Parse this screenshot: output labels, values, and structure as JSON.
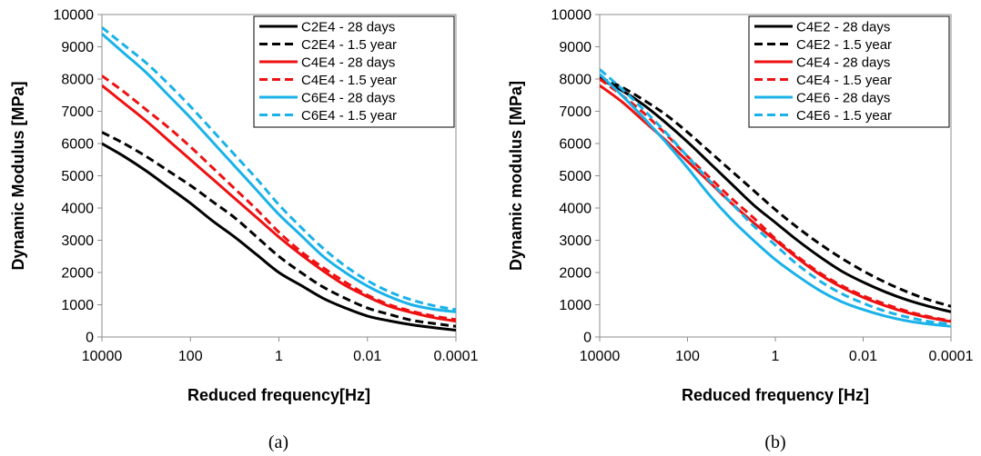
{
  "chart_data": [
    {
      "type": "line",
      "caption": "(a)",
      "xlabel": "Reduced frequency[Hz]",
      "ylabel": "Dynamic Modulus [MPa]",
      "x_scale": "log",
      "x_reversed": true,
      "xlim": [
        10000,
        0.0001
      ],
      "ylim": [
        0,
        10000
      ],
      "x_ticks": [
        10000,
        100,
        1,
        0.01,
        0.0001
      ],
      "x_tick_labels": [
        "10000",
        "100",
        "1",
        "0.01",
        "0.0001"
      ],
      "y_ticks": [
        0,
        1000,
        2000,
        3000,
        4000,
        5000,
        6000,
        7000,
        8000,
        9000,
        10000
      ],
      "y_tick_labels": [
        "0",
        "1000",
        "2000",
        "3000",
        "4000",
        "5000",
        "6000",
        "7000",
        "8000",
        "9000",
        "10000"
      ],
      "grid": false,
      "legend_position": "top-right",
      "x": [
        10000,
        3162,
        1000,
        316,
        100,
        31.6,
        10,
        3.16,
        1,
        0.316,
        0.1,
        0.0316,
        0.01,
        0.00316,
        0.001,
        0.000316,
        0.0001
      ],
      "series": [
        {
          "name": "C2E4 - 28 days",
          "color": "#000000",
          "dash": "solid",
          "values": [
            6000,
            5600,
            5150,
            4650,
            4150,
            3600,
            3100,
            2550,
            2000,
            1600,
            1200,
            900,
            650,
            500,
            380,
            290,
            210
          ]
        },
        {
          "name": "C2E4 - 1.5 year",
          "color": "#000000",
          "dash": "dashed",
          "values": [
            6350,
            6000,
            5600,
            5150,
            4700,
            4200,
            3700,
            3100,
            2500,
            2000,
            1550,
            1200,
            900,
            700,
            520,
            420,
            330
          ]
        },
        {
          "name": "C4E4 - 28 days",
          "color": "#ee1111",
          "dash": "solid",
          "values": [
            7800,
            7250,
            6700,
            6100,
            5500,
            4900,
            4300,
            3700,
            3100,
            2550,
            2050,
            1600,
            1250,
            950,
            760,
            600,
            490
          ]
        },
        {
          "name": "C4E4 - 1.5 year",
          "color": "#ee1111",
          "dash": "dashed",
          "values": [
            8100,
            7600,
            7050,
            6500,
            5900,
            5250,
            4600,
            3950,
            3250,
            2650,
            2150,
            1700,
            1300,
            1000,
            800,
            650,
            540
          ]
        },
        {
          "name": "C6E4 - 28 days",
          "color": "#1ab2e8",
          "dash": "solid",
          "values": [
            9400,
            8800,
            8200,
            7500,
            6800,
            6050,
            5300,
            4550,
            3800,
            3150,
            2500,
            2000,
            1580,
            1250,
            1000,
            860,
            780
          ]
        },
        {
          "name": "C6E4 - 1.5 year",
          "color": "#1ab2e8",
          "dash": "dashed",
          "values": [
            9600,
            9050,
            8500,
            7850,
            7150,
            6400,
            5650,
            4900,
            4100,
            3400,
            2750,
            2200,
            1750,
            1400,
            1150,
            970,
            850
          ]
        }
      ]
    },
    {
      "type": "line",
      "caption": "(b)",
      "xlabel": "Reduced frequency [Hz]",
      "ylabel": "Dynamic modulus [MPa]",
      "x_scale": "log",
      "x_reversed": true,
      "xlim": [
        10000,
        0.0001
      ],
      "ylim": [
        0,
        10000
      ],
      "x_ticks": [
        10000,
        100,
        1,
        0.01,
        0.0001
      ],
      "x_tick_labels": [
        "10000",
        "100",
        "1",
        "0.01",
        "0.0001"
      ],
      "y_ticks": [
        0,
        1000,
        2000,
        3000,
        4000,
        5000,
        6000,
        7000,
        8000,
        9000,
        10000
      ],
      "y_tick_labels": [
        "0",
        "1000",
        "2000",
        "3000",
        "4000",
        "5000",
        "6000",
        "7000",
        "8000",
        "9000",
        "10000"
      ],
      "grid": false,
      "legend_position": "top-right",
      "x": [
        10000,
        3162,
        1000,
        316,
        100,
        31.6,
        10,
        3.16,
        1,
        0.316,
        0.1,
        0.0316,
        0.01,
        0.00316,
        0.001,
        0.000316,
        0.0001
      ],
      "series": [
        {
          "name": "C4E2 - 28 days",
          "color": "#000000",
          "dash": "solid",
          "values": [
            8000,
            7650,
            7200,
            6650,
            6050,
            5400,
            4750,
            4100,
            3550,
            3000,
            2500,
            2050,
            1700,
            1400,
            1150,
            950,
            780
          ]
        },
        {
          "name": "C4E2 - 1.5 year",
          "color": "#000000",
          "dash": "dashed",
          "values": [
            8050,
            7750,
            7350,
            6900,
            6350,
            5750,
            5150,
            4550,
            3950,
            3400,
            2900,
            2450,
            2050,
            1700,
            1400,
            1150,
            950
          ]
        },
        {
          "name": "C4E4 - 28 days",
          "color": "#ee1111",
          "dash": "solid",
          "values": [
            7800,
            7300,
            6700,
            6100,
            5450,
            4800,
            4150,
            3550,
            3000,
            2450,
            1950,
            1550,
            1230,
            970,
            760,
            600,
            480
          ]
        },
        {
          "name": "C4E4 - 1.5 year",
          "color": "#ee1111",
          "dash": "dashed",
          "values": [
            8000,
            7500,
            6950,
            6300,
            5600,
            4950,
            4300,
            3700,
            3050,
            2500,
            2000,
            1600,
            1280,
            1020,
            800,
            630,
            500
          ]
        },
        {
          "name": "C4E6 - 28 days",
          "color": "#1ab2e8",
          "dash": "solid",
          "values": [
            8150,
            7500,
            6800,
            6050,
            5250,
            4400,
            3650,
            3000,
            2400,
            1900,
            1450,
            1100,
            850,
            650,
            500,
            400,
            330
          ]
        },
        {
          "name": "C4E6 - 1.5 year",
          "color": "#1ab2e8",
          "dash": "dashed",
          "values": [
            8300,
            7700,
            7050,
            6350,
            5600,
            4850,
            4150,
            3450,
            2850,
            2250,
            1750,
            1350,
            1050,
            800,
            620,
            480,
            400
          ]
        }
      ]
    }
  ]
}
